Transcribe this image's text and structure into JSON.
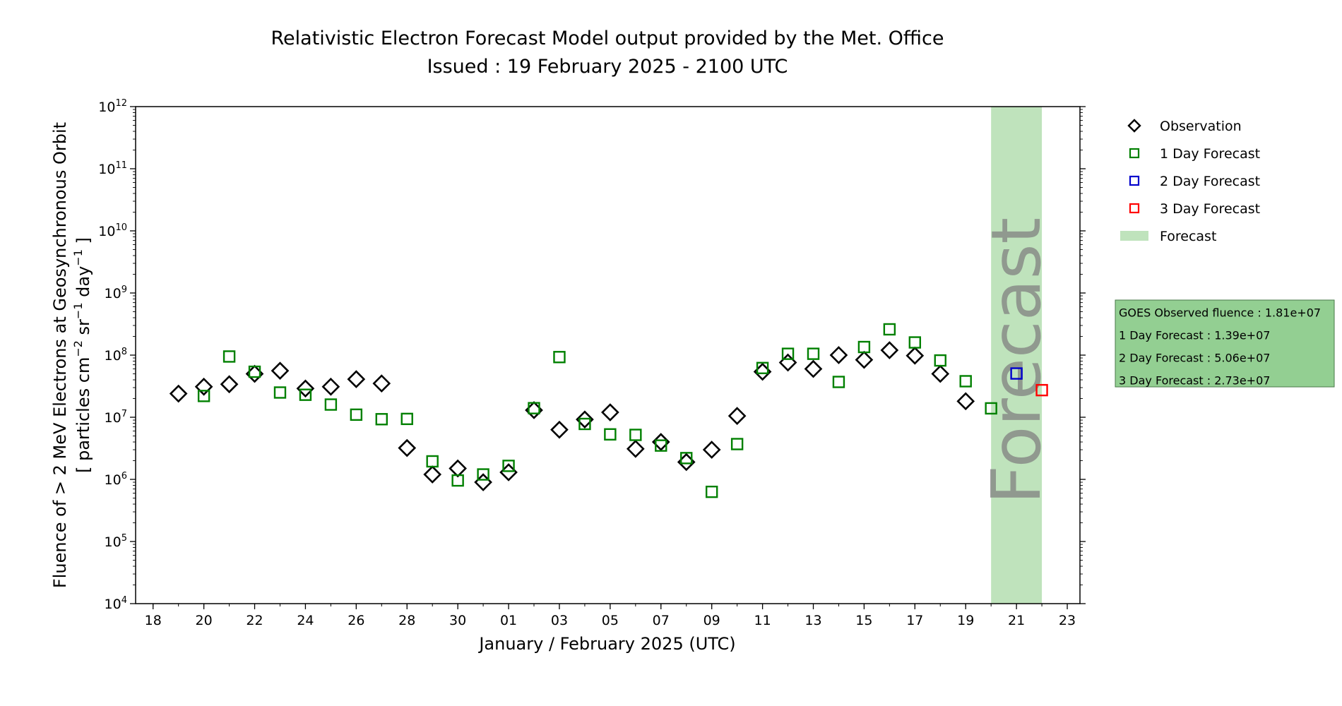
{
  "chart_data": {
    "type": "scatter",
    "title": "Relativistic Electron Forecast Model output provided by the Met. Office",
    "subtitle": "Issued : 19 February 2025 - 2100 UTC",
    "xlabel": "January / February 2025 (UTC)",
    "ylabel_line1": "Fluence of > 2 MeV Electrons at Geosynchronous Orbit",
    "ylabel_line2_parts": [
      "[ particles cm",
      "−2",
      " sr",
      "−1",
      " day",
      "−1",
      " ]"
    ],
    "y_scale": "log",
    "ylim": [
      "1e4",
      "1e12"
    ],
    "xlim": [
      "2025-01-17T07:30",
      "2025-02-23T12:00"
    ],
    "y_tick_base": "10",
    "y_tick_exponents": [
      "4",
      "5",
      "6",
      "7",
      "8",
      "9",
      "10",
      "11",
      "12"
    ],
    "x_ticks": [
      {
        "date": "2025-01-18",
        "label": "18"
      },
      {
        "date": "2025-01-20",
        "label": "20"
      },
      {
        "date": "2025-01-22",
        "label": "22"
      },
      {
        "date": "2025-01-24",
        "label": "24"
      },
      {
        "date": "2025-01-26",
        "label": "26"
      },
      {
        "date": "2025-01-28",
        "label": "28"
      },
      {
        "date": "2025-01-30",
        "label": "30"
      },
      {
        "date": "2025-02-01",
        "label": "01"
      },
      {
        "date": "2025-02-03",
        "label": "03"
      },
      {
        "date": "2025-02-05",
        "label": "05"
      },
      {
        "date": "2025-02-07",
        "label": "07"
      },
      {
        "date": "2025-02-09",
        "label": "09"
      },
      {
        "date": "2025-02-11",
        "label": "11"
      },
      {
        "date": "2025-02-13",
        "label": "13"
      },
      {
        "date": "2025-02-15",
        "label": "15"
      },
      {
        "date": "2025-02-17",
        "label": "17"
      },
      {
        "date": "2025-02-19",
        "label": "19"
      },
      {
        "date": "2025-02-21",
        "label": "21"
      },
      {
        "date": "2025-02-23",
        "label": "23"
      }
    ],
    "forecast_region": {
      "label": "Forecast",
      "x_start": "2025-02-20T00:00",
      "x_end": "2025-02-22T00:00",
      "color": "#bfe3bc"
    },
    "series": [
      {
        "name": "Observation",
        "marker": "diamond",
        "color": "#000000",
        "points": [
          {
            "x": "2025-01-19",
            "y": 24000000.0
          },
          {
            "x": "2025-01-20",
            "y": 31000000.0
          },
          {
            "x": "2025-01-21",
            "y": 34000000.0
          },
          {
            "x": "2025-01-22",
            "y": 50000000.0
          },
          {
            "x": "2025-01-23",
            "y": 56000000.0
          },
          {
            "x": "2025-01-24",
            "y": 29000000.0
          },
          {
            "x": "2025-01-25",
            "y": 31000000.0
          },
          {
            "x": "2025-01-26",
            "y": 41000000.0
          },
          {
            "x": "2025-01-27",
            "y": 35000000.0
          },
          {
            "x": "2025-01-28",
            "y": 3200000.0
          },
          {
            "x": "2025-01-29",
            "y": 1200000.0
          },
          {
            "x": "2025-01-30",
            "y": 1500000.0
          },
          {
            "x": "2025-01-31",
            "y": 900000.0
          },
          {
            "x": "2025-02-01",
            "y": 1300000.0
          },
          {
            "x": "2025-02-02",
            "y": 13000000.0
          },
          {
            "x": "2025-02-03",
            "y": 6300000.0
          },
          {
            "x": "2025-02-04",
            "y": 9200000.0
          },
          {
            "x": "2025-02-05",
            "y": 12000000.0
          },
          {
            "x": "2025-02-06",
            "y": 3100000.0
          },
          {
            "x": "2025-02-07",
            "y": 4000000.0
          },
          {
            "x": "2025-02-08",
            "y": 1900000.0
          },
          {
            "x": "2025-02-09",
            "y": 3000000.0
          },
          {
            "x": "2025-02-10",
            "y": 10500000.0
          },
          {
            "x": "2025-02-11",
            "y": 54000000.0
          },
          {
            "x": "2025-02-12",
            "y": 76000000.0
          },
          {
            "x": "2025-02-13",
            "y": 60000000.0
          },
          {
            "x": "2025-02-14",
            "y": 100000000.0
          },
          {
            "x": "2025-02-15",
            "y": 84000000.0
          },
          {
            "x": "2025-02-16",
            "y": 120000000.0
          },
          {
            "x": "2025-02-17",
            "y": 98000000.0
          },
          {
            "x": "2025-02-18",
            "y": 50000000.0
          },
          {
            "x": "2025-02-19",
            "y": 18100000.0
          }
        ]
      },
      {
        "name": "1 Day Forecast",
        "marker": "square",
        "color": "#008000",
        "points": [
          {
            "x": "2025-01-20",
            "y": 22000000.0
          },
          {
            "x": "2025-01-21",
            "y": 95000000.0
          },
          {
            "x": "2025-01-22",
            "y": 54000000.0
          },
          {
            "x": "2025-01-23",
            "y": 25000000.0
          },
          {
            "x": "2025-01-24",
            "y": 23000000.0
          },
          {
            "x": "2025-01-25",
            "y": 16000000.0
          },
          {
            "x": "2025-01-26",
            "y": 11000000.0
          },
          {
            "x": "2025-01-27",
            "y": 9300000.0
          },
          {
            "x": "2025-01-28",
            "y": 9400000.0
          },
          {
            "x": "2025-01-29",
            "y": 1950000.0
          },
          {
            "x": "2025-01-30",
            "y": 960000.0
          },
          {
            "x": "2025-01-31",
            "y": 1200000.0
          },
          {
            "x": "2025-02-01",
            "y": 1650000.0
          },
          {
            "x": "2025-02-02",
            "y": 14000000.0
          },
          {
            "x": "2025-02-03",
            "y": 93000000.0
          },
          {
            "x": "2025-02-04",
            "y": 7800000.0
          },
          {
            "x": "2025-02-05",
            "y": 5300000.0
          },
          {
            "x": "2025-02-06",
            "y": 5200000.0
          },
          {
            "x": "2025-02-07",
            "y": 3500000.0
          },
          {
            "x": "2025-02-08",
            "y": 2200000.0
          },
          {
            "x": "2025-02-09",
            "y": 630000.0
          },
          {
            "x": "2025-02-10",
            "y": 3700000.0
          },
          {
            "x": "2025-02-11",
            "y": 62000000.0
          },
          {
            "x": "2025-02-12",
            "y": 105000000.0
          },
          {
            "x": "2025-02-13",
            "y": 105000000.0
          },
          {
            "x": "2025-02-14",
            "y": 37000000.0
          },
          {
            "x": "2025-02-15",
            "y": 135000000.0
          },
          {
            "x": "2025-02-16",
            "y": 260000000.0
          },
          {
            "x": "2025-02-17",
            "y": 160000000.0
          },
          {
            "x": "2025-02-18",
            "y": 82000000.0
          },
          {
            "x": "2025-02-19",
            "y": 38000000.0
          },
          {
            "x": "2025-02-20",
            "y": 13900000.0
          }
        ]
      },
      {
        "name": "2 Day Forecast",
        "marker": "square",
        "color": "#0000cc",
        "points": [
          {
            "x": "2025-02-21",
            "y": 50600000.0
          }
        ]
      },
      {
        "name": "3 Day Forecast",
        "marker": "square",
        "color": "#ff0000",
        "points": [
          {
            "x": "2025-02-22",
            "y": 27300000.0
          }
        ]
      }
    ],
    "legend": {
      "position": "right of plot, top",
      "items": [
        {
          "label": "Observation",
          "marker": "diamond",
          "color": "#000000"
        },
        {
          "label": "1 Day Forecast",
          "marker": "square",
          "color": "#008000"
        },
        {
          "label": "2 Day Forecast",
          "marker": "square",
          "color": "#0000cc"
        },
        {
          "label": "3 Day Forecast",
          "marker": "square",
          "color": "#ff0000"
        },
        {
          "label": "Forecast",
          "marker": "patch",
          "color": "#bfe3bc"
        }
      ]
    },
    "stats_box": {
      "background": "#93cf92",
      "lines": [
        "GOES Observed fluence : 1.81e+07",
        "1 Day Forecast : 1.39e+07",
        "2 Day Forecast : 5.06e+07",
        "3 Day Forecast : 2.73e+07"
      ]
    }
  }
}
